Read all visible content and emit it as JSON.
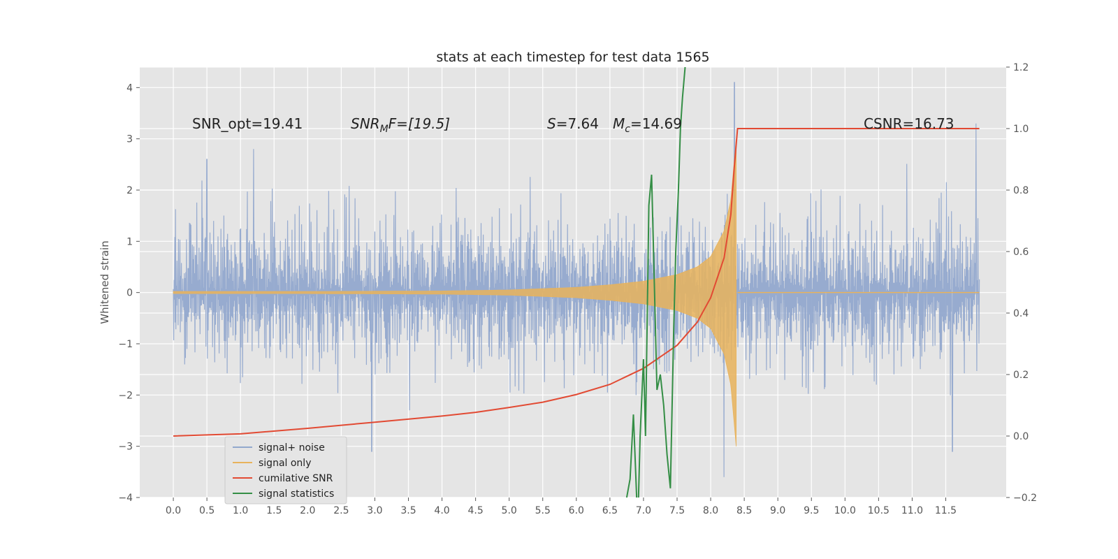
{
  "chart_data": {
    "type": "line",
    "title": "stats at each timestep for test data 1565",
    "ylabel": "Whitened strain",
    "xlabel": "",
    "xlim": [
      -0.5,
      12.4
    ],
    "ylim": [
      -4,
      4.4
    ],
    "y2lim": [
      -0.2,
      1.2
    ],
    "grid": true,
    "legend_position": "bottom-left",
    "x_ticks": [
      "0.0",
      "0.5",
      "1.0",
      "1.5",
      "2.0",
      "2.5",
      "3.0",
      "3.5",
      "4.0",
      "4.5",
      "5.0",
      "5.5",
      "6.0",
      "6.5",
      "7.0",
      "7.5",
      "8.0",
      "8.5",
      "9.0",
      "9.5",
      "10.0",
      "10.5",
      "11.0",
      "11.5"
    ],
    "y_ticks": [
      "4",
      "3",
      "2",
      "1",
      "0",
      "−1",
      "−2",
      "−3",
      "−4"
    ],
    "y2_ticks": [
      "1.2",
      "1.0",
      "0.8",
      "0.6",
      "0.4",
      "0.2",
      "0.0",
      "−0.2"
    ],
    "annotations": {
      "snr_opt": "SNR_opt=19.41",
      "snr_mf_sym": "SNR",
      "snr_mf_sub": "M",
      "snr_mf_rest": "F=[19.5]",
      "s_sym": "S",
      "s_val": "=7.64",
      "mc_sym": "M",
      "mc_sub": "c",
      "mc_val": "=14.69",
      "csnr": "CSNR=16.73"
    },
    "series": [
      {
        "name": "signal+ noise",
        "color": "#92a8cd",
        "axis": "left",
        "style": "noise",
        "x_range": [
          0.0,
          12.0
        ],
        "amplitude_approx": 2.0,
        "peaks": [
          {
            "x": 0.5,
            "y": 2.6
          },
          {
            "x": 1.2,
            "y": 2.8
          },
          {
            "x": 8.35,
            "y": 4.1
          },
          {
            "x": 11.95,
            "y": 3.3
          },
          {
            "x": 8.2,
            "y": -3.6
          },
          {
            "x": 11.6,
            "y": -3.1
          },
          {
            "x": 2.95,
            "y": -3.1
          }
        ]
      },
      {
        "name": "signal only",
        "color": "#e8b35c",
        "axis": "left",
        "style": "chirp",
        "x": [
          0.0,
          2.0,
          4.0,
          5.0,
          6.0,
          6.5,
          7.0,
          7.5,
          7.8,
          8.0,
          8.2,
          8.3,
          8.38,
          8.4,
          12.0
        ],
        "envelope": [
          0.02,
          0.02,
          0.03,
          0.05,
          0.1,
          0.15,
          0.22,
          0.35,
          0.5,
          0.7,
          1.2,
          1.8,
          3.0,
          0.0,
          0.0
        ]
      },
      {
        "name": "cumilative SNR",
        "color": "#e24a33",
        "axis": "right",
        "x": [
          0.0,
          1.0,
          2.0,
          3.0,
          4.0,
          4.5,
          5.0,
          5.5,
          6.0,
          6.5,
          7.0,
          7.5,
          7.8,
          8.0,
          8.2,
          8.3,
          8.35,
          8.4,
          12.0
        ],
        "y": [
          0.0,
          0.007,
          0.025,
          0.045,
          0.065,
          0.077,
          0.093,
          0.11,
          0.135,
          0.168,
          0.22,
          0.295,
          0.37,
          0.45,
          0.58,
          0.72,
          0.87,
          1.0,
          1.0
        ]
      },
      {
        "name": "signal statistics",
        "color": "#348e45",
        "axis": "right",
        "x": [
          6.75,
          6.8,
          6.85,
          6.9,
          6.92,
          6.95,
          7.0,
          7.03,
          7.05,
          7.08,
          7.12,
          7.15,
          7.2,
          7.25,
          7.3,
          7.35,
          7.4,
          7.45,
          7.48,
          7.52,
          7.55,
          7.58,
          7.62
        ],
        "y": [
          -0.2,
          -0.14,
          0.07,
          -0.21,
          -0.25,
          0.0,
          0.25,
          0.0,
          0.3,
          0.75,
          0.85,
          0.6,
          0.15,
          0.2,
          0.1,
          -0.06,
          -0.17,
          0.35,
          0.6,
          0.8,
          1.0,
          1.1,
          1.2
        ]
      }
    ]
  }
}
